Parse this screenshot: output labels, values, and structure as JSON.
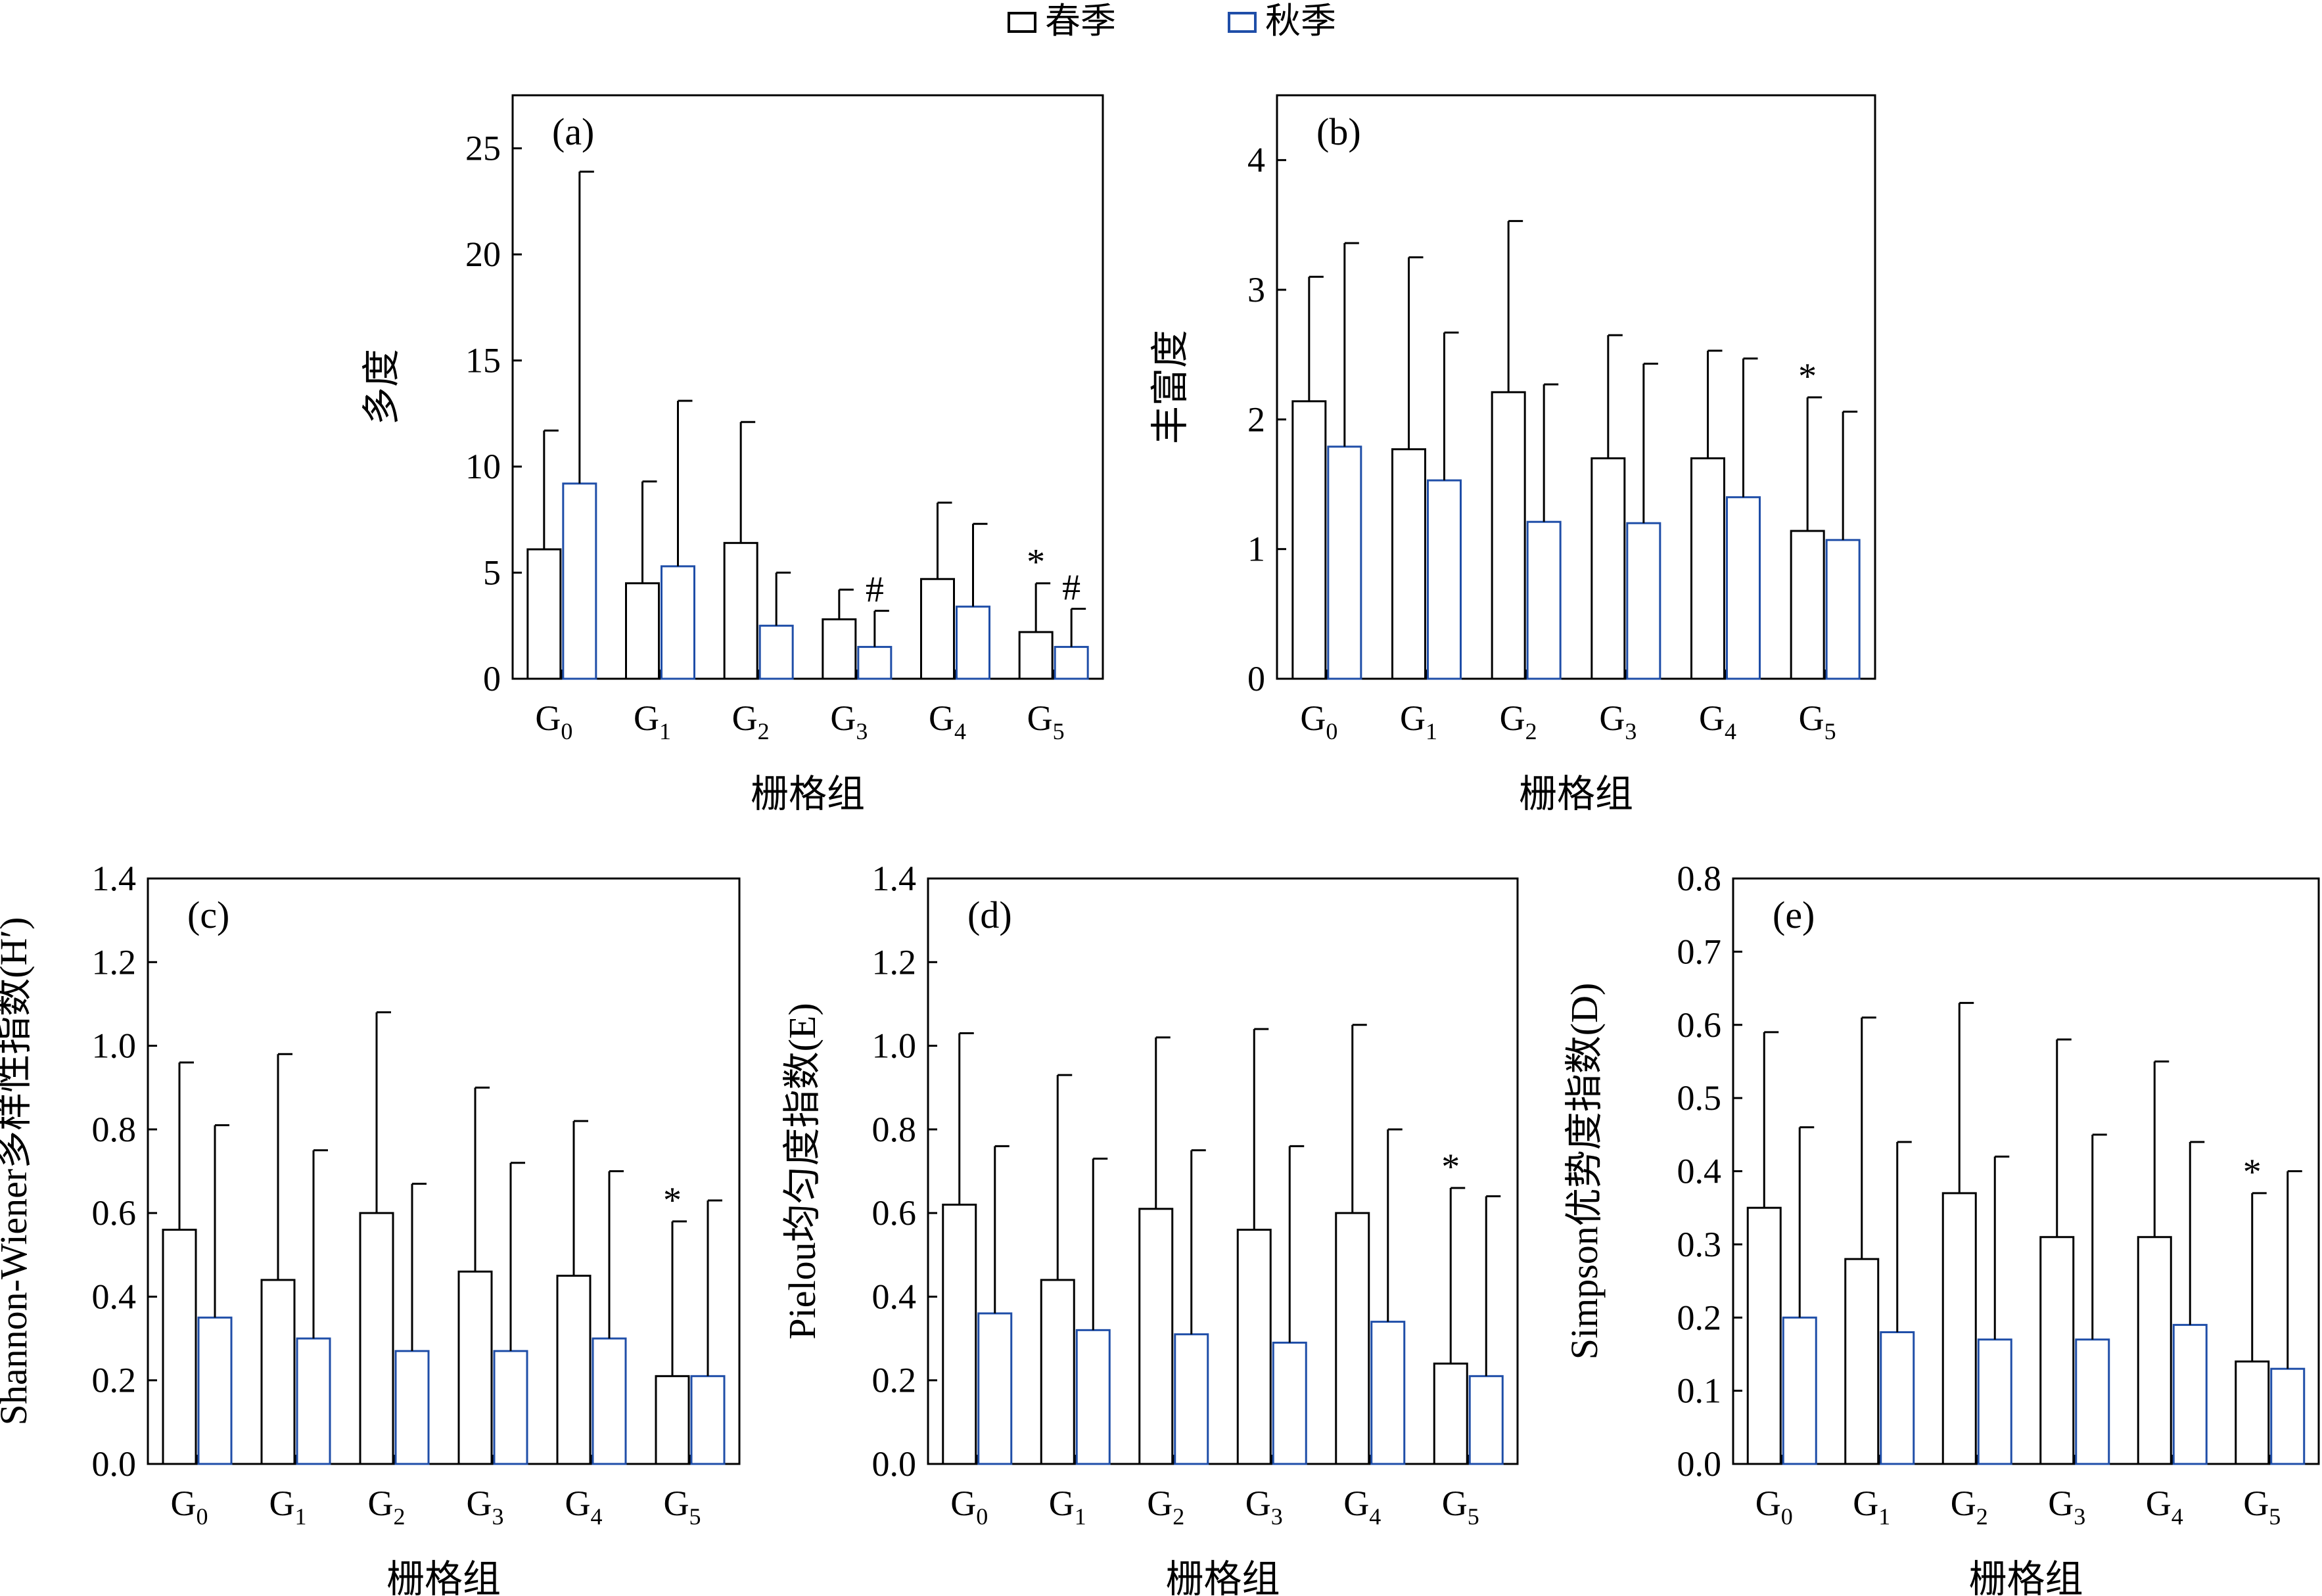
{
  "legend": {
    "items": [
      {
        "label": "春季",
        "color": "#000000"
      },
      {
        "label": "秋季",
        "color": "#1f4ea8"
      }
    ]
  },
  "chart_data": [
    {
      "type": "bar",
      "panel_label": "(a)",
      "ylabel": "多度",
      "xlabel": "栅格组",
      "categories": [
        {
          "base": "G",
          "sub": "0"
        },
        {
          "base": "G",
          "sub": "1"
        },
        {
          "base": "G",
          "sub": "2"
        },
        {
          "base": "G",
          "sub": "3"
        },
        {
          "base": "G",
          "sub": "4"
        },
        {
          "base": "G",
          "sub": "5"
        }
      ],
      "ylim": [
        0,
        27.5
      ],
      "yticks": [
        0,
        5,
        10,
        15,
        20,
        25
      ],
      "ytick_labels": [
        "0",
        "5",
        "10",
        "15",
        "20",
        "25"
      ],
      "series": [
        {
          "name": "春季",
          "values": [
            6.1,
            4.5,
            6.4,
            2.8,
            4.7,
            2.2
          ],
          "errors": [
            5.6,
            4.8,
            5.7,
            1.4,
            3.6,
            2.3
          ],
          "annotations": [
            "",
            "",
            "",
            "",
            "",
            "*"
          ]
        },
        {
          "name": "秋季",
          "values": [
            9.2,
            5.3,
            2.5,
            1.5,
            3.4,
            1.5
          ],
          "errors": [
            14.7,
            7.8,
            2.5,
            1.7,
            3.9,
            1.8
          ],
          "annotations": [
            "",
            "",
            "",
            "#",
            "",
            "#"
          ]
        }
      ]
    },
    {
      "type": "bar",
      "panel_label": "(b)",
      "ylabel": "丰富度",
      "xlabel": "栅格组",
      "categories": [
        {
          "base": "G",
          "sub": "0"
        },
        {
          "base": "G",
          "sub": "1"
        },
        {
          "base": "G",
          "sub": "2"
        },
        {
          "base": "G",
          "sub": "3"
        },
        {
          "base": "G",
          "sub": "4"
        },
        {
          "base": "G",
          "sub": "5"
        }
      ],
      "ylim": [
        0,
        4.5
      ],
      "yticks": [
        0,
        1,
        2,
        3,
        4
      ],
      "ytick_labels": [
        "0",
        "1",
        "2",
        "3",
        "4"
      ],
      "series": [
        {
          "name": "春季",
          "values": [
            2.14,
            1.77,
            2.21,
            1.7,
            1.7,
            1.14
          ],
          "errors": [
            0.96,
            1.48,
            1.32,
            0.95,
            0.83,
            1.03
          ],
          "annotations": [
            "",
            "",
            "",
            "",
            "",
            "*"
          ]
        },
        {
          "name": "秋季",
          "values": [
            1.79,
            1.53,
            1.21,
            1.2,
            1.4,
            1.07
          ],
          "errors": [
            1.57,
            1.14,
            1.06,
            1.23,
            1.07,
            0.99
          ],
          "annotations": [
            "",
            "",
            "",
            "",
            "",
            ""
          ]
        }
      ]
    },
    {
      "type": "bar",
      "panel_label": "(c)",
      "ylabel": "Shannon-Wiener多样性指数(H′)",
      "xlabel": "栅格组",
      "categories": [
        {
          "base": "G",
          "sub": "0"
        },
        {
          "base": "G",
          "sub": "1"
        },
        {
          "base": "G",
          "sub": "2"
        },
        {
          "base": "G",
          "sub": "3"
        },
        {
          "base": "G",
          "sub": "4"
        },
        {
          "base": "G",
          "sub": "5"
        }
      ],
      "ylim": [
        0,
        1.4
      ],
      "yticks": [
        0,
        0.2,
        0.4,
        0.6,
        0.8,
        1.0,
        1.2,
        1.4
      ],
      "ytick_labels": [
        "0.0",
        "0.2",
        "0.4",
        "0.6",
        "0.8",
        "1.0",
        "1.2",
        "1.4"
      ],
      "series": [
        {
          "name": "春季",
          "values": [
            0.56,
            0.44,
            0.6,
            0.46,
            0.45,
            0.21
          ],
          "errors": [
            0.4,
            0.54,
            0.48,
            0.44,
            0.37,
            0.37
          ],
          "annotations": [
            "",
            "",
            "",
            "",
            "",
            "*"
          ]
        },
        {
          "name": "秋季",
          "values": [
            0.35,
            0.3,
            0.27,
            0.27,
            0.3,
            0.21
          ],
          "errors": [
            0.46,
            0.45,
            0.4,
            0.45,
            0.4,
            0.42
          ],
          "annotations": [
            "",
            "",
            "",
            "",
            "",
            ""
          ]
        }
      ]
    },
    {
      "type": "bar",
      "panel_label": "(d)",
      "ylabel": "Pielou均匀度指数(E)",
      "xlabel": "栅格组",
      "categories": [
        {
          "base": "G",
          "sub": "0"
        },
        {
          "base": "G",
          "sub": "1"
        },
        {
          "base": "G",
          "sub": "2"
        },
        {
          "base": "G",
          "sub": "3"
        },
        {
          "base": "G",
          "sub": "4"
        },
        {
          "base": "G",
          "sub": "5"
        }
      ],
      "ylim": [
        0,
        1.4
      ],
      "yticks": [
        0,
        0.2,
        0.4,
        0.6,
        0.8,
        1.0,
        1.2,
        1.4
      ],
      "ytick_labels": [
        "0.0",
        "0.2",
        "0.4",
        "0.6",
        "0.8",
        "1.0",
        "1.2",
        "1.4"
      ],
      "series": [
        {
          "name": "春季",
          "values": [
            0.62,
            0.44,
            0.61,
            0.56,
            0.6,
            0.24
          ],
          "errors": [
            0.41,
            0.49,
            0.41,
            0.48,
            0.45,
            0.42
          ],
          "annotations": [
            "",
            "",
            "",
            "",
            "",
            "*"
          ]
        },
        {
          "name": "秋季",
          "values": [
            0.36,
            0.32,
            0.31,
            0.29,
            0.34,
            0.21
          ],
          "errors": [
            0.4,
            0.41,
            0.44,
            0.47,
            0.46,
            0.43
          ],
          "annotations": [
            "",
            "",
            "",
            "",
            "",
            ""
          ]
        }
      ]
    },
    {
      "type": "bar",
      "panel_label": "(e)",
      "ylabel": "Simpson优势度指数(D)",
      "xlabel": "栅格组",
      "categories": [
        {
          "base": "G",
          "sub": "0"
        },
        {
          "base": "G",
          "sub": "1"
        },
        {
          "base": "G",
          "sub": "2"
        },
        {
          "base": "G",
          "sub": "3"
        },
        {
          "base": "G",
          "sub": "4"
        },
        {
          "base": "G",
          "sub": "5"
        }
      ],
      "ylim": [
        0,
        0.8
      ],
      "yticks": [
        0,
        0.1,
        0.2,
        0.3,
        0.4,
        0.5,
        0.6,
        0.7,
        0.8
      ],
      "ytick_labels": [
        "0.0",
        "0.1",
        "0.2",
        "0.3",
        "0.4",
        "0.5",
        "0.6",
        "0.7",
        "0.8"
      ],
      "series": [
        {
          "name": "春季",
          "values": [
            0.35,
            0.28,
            0.37,
            0.31,
            0.31,
            0.14
          ],
          "errors": [
            0.24,
            0.33,
            0.26,
            0.27,
            0.24,
            0.23
          ],
          "annotations": [
            "",
            "",
            "",
            "",
            "",
            "*"
          ]
        },
        {
          "name": "秋季",
          "values": [
            0.2,
            0.18,
            0.17,
            0.17,
            0.19,
            0.13
          ],
          "errors": [
            0.26,
            0.26,
            0.25,
            0.28,
            0.25,
            0.27
          ],
          "annotations": [
            "",
            "",
            "",
            "",
            "",
            ""
          ]
        }
      ]
    }
  ]
}
